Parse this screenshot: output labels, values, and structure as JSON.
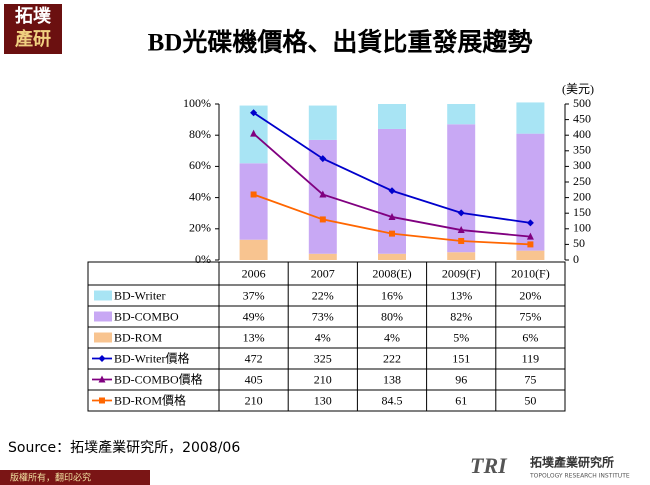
{
  "header": {
    "logo": [
      "拓墣",
      "產研"
    ]
  },
  "chart_data": {
    "type": "combo",
    "title": "BD光碟機價格、出貨比重發展趨勢",
    "categories": [
      "2006",
      "2007",
      "2008(E)",
      "2009(F)",
      "2010(F)"
    ],
    "y2_label": "(美元)",
    "ylim": [
      0,
      100
    ],
    "yticks": [
      {
        "value": 0,
        "label": "0%"
      },
      {
        "value": 20,
        "label": "20%"
      },
      {
        "value": 40,
        "label": "40%"
      },
      {
        "value": 60,
        "label": "60%"
      },
      {
        "value": 80,
        "label": "80%"
      },
      {
        "value": 100,
        "label": "100%"
      }
    ],
    "y2lim": [
      0,
      500
    ],
    "y2ticks": [
      0,
      50,
      100,
      150,
      200,
      250,
      300,
      350,
      400,
      450,
      500
    ],
    "grid": false,
    "series": [
      {
        "name": "BD-Writer",
        "type": "bar",
        "color": "#a8e4f4",
        "values": [
          37,
          22,
          16,
          13,
          20
        ],
        "value_labels": [
          "37%",
          "22%",
          "16%",
          "13%",
          "20%"
        ]
      },
      {
        "name": "BD-COMBO",
        "type": "bar",
        "color": "#c8a8f4",
        "values": [
          49,
          73,
          80,
          82,
          75
        ],
        "value_labels": [
          "49%",
          "73%",
          "80%",
          "82%",
          "75%"
        ]
      },
      {
        "name": "BD-ROM",
        "type": "bar",
        "color": "#f8c490",
        "values": [
          13,
          4,
          4,
          5,
          6
        ],
        "value_labels": [
          "13%",
          "4%",
          "4%",
          "5%",
          "6%"
        ]
      },
      {
        "name": "BD-Writer價格",
        "type": "line",
        "axis": "y2",
        "marker": "diamond",
        "color": "#0000cc",
        "values": [
          472,
          325,
          222,
          151,
          119
        ]
      },
      {
        "name": "BD-COMBO價格",
        "type": "line",
        "axis": "y2",
        "marker": "triangle",
        "color": "#800080",
        "values": [
          405,
          210,
          138,
          96,
          75
        ]
      },
      {
        "name": "BD-ROM價格",
        "type": "line",
        "axis": "y2",
        "marker": "square",
        "color": "#ff6600",
        "values": [
          210,
          130,
          84.5,
          61,
          50
        ]
      }
    ]
  },
  "source": "Source：拓墣產業研究所，2008/06",
  "footer": {
    "copyright": "版權所有，翻印必究",
    "brand": "TRI",
    "brand_name": "拓墣產業研究所",
    "brand_en": "TOPOLOGY RESEARCH INSTITUTE"
  }
}
